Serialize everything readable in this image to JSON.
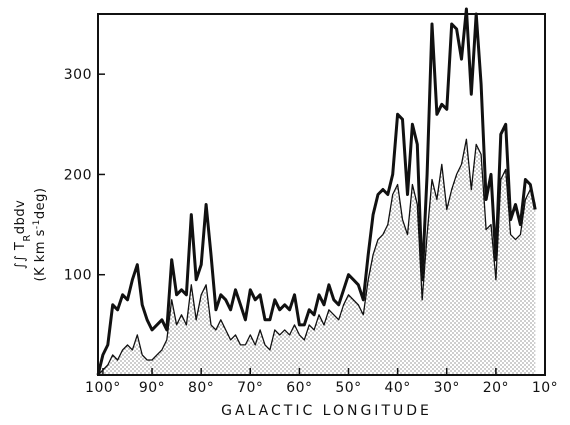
{
  "chart_data": {
    "type": "line",
    "title": "",
    "xlabel": "GALACTIC LONGITUDE",
    "ylabel_line1": "∫∫ T",
    "ylabel_sub": "R",
    "ylabel_rest": "dbdv",
    "ylabel_line2": "(K km s",
    "ylabel_sup": "-1",
    "ylabel_line2_rest": "deg)",
    "x_axis_reversed": true,
    "xlim": [
      101,
      10
    ],
    "ylim": [
      0,
      360
    ],
    "x_ticks": [
      {
        "value": 100,
        "label": "100°"
      },
      {
        "value": 90,
        "label": "90°"
      },
      {
        "value": 80,
        "label": "80°"
      },
      {
        "value": 70,
        "label": "70°"
      },
      {
        "value": 60,
        "label": "60°"
      },
      {
        "value": 50,
        "label": "50°"
      },
      {
        "value": 40,
        "label": "40°"
      },
      {
        "value": 30,
        "label": "30°"
      },
      {
        "value": 20,
        "label": "20°"
      },
      {
        "value": 10,
        "label": "10°"
      }
    ],
    "y_ticks": [
      {
        "value": 100,
        "label": "100"
      },
      {
        "value": 200,
        "label": "200"
      },
      {
        "value": 300,
        "label": "300"
      }
    ],
    "fill_pattern": "stipple",
    "series": [
      {
        "style": "thick",
        "x": [
          101,
          100,
          99,
          98,
          97,
          96,
          95,
          94,
          93,
          92,
          91,
          90,
          89,
          88,
          87,
          86,
          85,
          84,
          83,
          82,
          81,
          80,
          79,
          78,
          77,
          76,
          75,
          74,
          73,
          72,
          71,
          70,
          69,
          68,
          67,
          66,
          65,
          64,
          63,
          62,
          61,
          60,
          59,
          58,
          57,
          56,
          55,
          54,
          53,
          52,
          51,
          50,
          49,
          48,
          47,
          46,
          45,
          44,
          43,
          42,
          41,
          40,
          39,
          38,
          37,
          36,
          35,
          34,
          33,
          32,
          31,
          30,
          29,
          28,
          27,
          26,
          25,
          24,
          23,
          22,
          21,
          20,
          19,
          18,
          17,
          16,
          15,
          14,
          13,
          12
        ],
        "values": [
          0,
          20,
          30,
          70,
          65,
          80,
          75,
          95,
          110,
          70,
          55,
          45,
          50,
          55,
          45,
          115,
          80,
          85,
          80,
          160,
          95,
          110,
          170,
          120,
          65,
          80,
          75,
          65,
          85,
          70,
          55,
          85,
          75,
          80,
          55,
          55,
          75,
          65,
          70,
          65,
          80,
          50,
          50,
          65,
          60,
          80,
          70,
          90,
          75,
          70,
          85,
          100,
          95,
          90,
          75,
          120,
          160,
          180,
          185,
          180,
          200,
          260,
          255,
          180,
          250,
          230,
          95,
          200,
          350,
          260,
          270,
          265,
          350,
          345,
          315,
          365,
          280,
          360,
          290,
          175,
          200,
          115,
          240,
          250,
          155,
          170,
          150,
          195,
          190,
          165
        ]
      },
      {
        "style": "thin-filled",
        "x": [
          101,
          100,
          99,
          98,
          97,
          96,
          95,
          94,
          93,
          92,
          91,
          90,
          89,
          88,
          87,
          86,
          85,
          84,
          83,
          82,
          81,
          80,
          79,
          78,
          77,
          76,
          75,
          74,
          73,
          72,
          71,
          70,
          69,
          68,
          67,
          66,
          65,
          64,
          63,
          62,
          61,
          60,
          59,
          58,
          57,
          56,
          55,
          54,
          53,
          52,
          51,
          50,
          49,
          48,
          47,
          46,
          45,
          44,
          43,
          42,
          41,
          40,
          39,
          38,
          37,
          36,
          35,
          34,
          33,
          32,
          31,
          30,
          29,
          28,
          27,
          26,
          25,
          24,
          23,
          22,
          21,
          20,
          19,
          18,
          17,
          16,
          15,
          14,
          13,
          12
        ],
        "values": [
          0,
          5,
          10,
          20,
          15,
          25,
          30,
          25,
          40,
          20,
          15,
          15,
          20,
          25,
          35,
          75,
          50,
          60,
          50,
          90,
          55,
          80,
          90,
          50,
          45,
          55,
          45,
          35,
          40,
          30,
          30,
          40,
          30,
          45,
          30,
          25,
          45,
          40,
          45,
          40,
          50,
          40,
          35,
          50,
          45,
          60,
          50,
          65,
          60,
          55,
          70,
          80,
          75,
          70,
          60,
          95,
          120,
          135,
          140,
          150,
          180,
          190,
          155,
          140,
          190,
          170,
          75,
          140,
          195,
          175,
          210,
          165,
          185,
          200,
          210,
          235,
          185,
          230,
          220,
          145,
          150,
          95,
          195,
          205,
          140,
          135,
          140,
          175,
          185,
          170
        ]
      }
    ]
  }
}
